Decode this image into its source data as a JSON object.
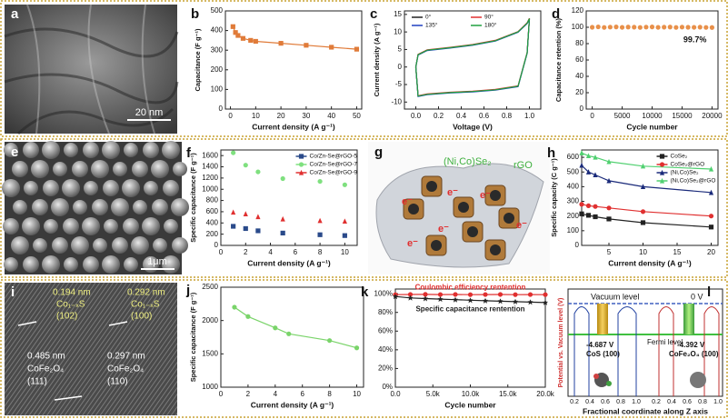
{
  "chart_data": [
    {
      "type": "line",
      "panel_label": "b",
      "xlabel": "Current density (A g⁻¹)",
      "ylabel": "Capacitance (F g⁻¹)",
      "x": [
        1,
        2,
        3,
        5,
        8,
        10,
        20,
        30,
        40,
        50
      ],
      "values": [
        420,
        390,
        375,
        360,
        350,
        345,
        335,
        325,
        315,
        305
      ],
      "color": "#e07b39",
      "marker": "square",
      "xlim": [
        -2,
        52
      ],
      "xticks": [
        0,
        10,
        20,
        30,
        40,
        50
      ],
      "ylim": [
        0,
        500
      ],
      "yticks": [
        0,
        100,
        200,
        300,
        400,
        500
      ]
    },
    {
      "type": "line",
      "panel_label": "c",
      "xlabel": "Voltage (V)",
      "ylabel": "Current density (A g⁻¹)",
      "legend": "top",
      "x": [
        0,
        0.02,
        0.1,
        0.3,
        0.5,
        0.7,
        0.9,
        0.98,
        1.0,
        0.98,
        0.9,
        0.7,
        0.5,
        0.3,
        0.1,
        0.02,
        0
      ],
      "series": [
        {
          "name": "0°",
          "color": "#222222",
          "values": [
            0,
            3.5,
            4.8,
            5.5,
            6.3,
            7.5,
            10,
            12.5,
            13.8,
            4,
            -5.5,
            -6.5,
            -7,
            -7.3,
            -7.8,
            -8.3,
            0
          ]
        },
        {
          "name": "90°",
          "color": "#e03030",
          "values": [
            0,
            3.6,
            4.9,
            5.6,
            6.4,
            7.6,
            10.1,
            12.6,
            13.9,
            4.1,
            -5.4,
            -6.4,
            -6.9,
            -7.2,
            -7.7,
            -8.2,
            0
          ]
        },
        {
          "name": "135°",
          "color": "#2040c0",
          "values": [
            0,
            3.4,
            4.7,
            5.4,
            6.2,
            7.4,
            9.9,
            12.4,
            13.7,
            3.9,
            -5.6,
            -6.6,
            -7.1,
            -7.4,
            -7.9,
            -8.4,
            0
          ]
        },
        {
          "name": "180°",
          "color": "#20a040",
          "values": [
            0,
            3.5,
            4.8,
            5.5,
            6.3,
            7.5,
            10,
            12.5,
            13.8,
            4,
            -5.5,
            -6.5,
            -7,
            -7.3,
            -7.8,
            -8.3,
            0
          ]
        }
      ],
      "xlim": [
        -0.1,
        1.1
      ],
      "xticks": [
        {
          "value": 0,
          "label": "0.0"
        },
        0.2,
        0.4,
        0.6,
        0.8,
        {
          "value": 1,
          "label": "1.0"
        }
      ],
      "ylim": [
        -12,
        16
      ],
      "yticks": [
        -10,
        -5,
        0,
        5,
        10,
        15
      ]
    },
    {
      "type": "scatter",
      "panel_label": "d",
      "xlabel": "Cycle number",
      "ylabel": "Capacitance retention (%)",
      "annotation": "99.7%",
      "x": [
        0,
        1000,
        2000,
        3000,
        4000,
        5000,
        6000,
        7000,
        8000,
        9000,
        10000,
        11000,
        12000,
        13000,
        14000,
        15000,
        16000,
        17000,
        18000,
        19000,
        20000
      ],
      "values": [
        100,
        100.5,
        99.8,
        100.2,
        100.4,
        99.9,
        100.3,
        100.1,
        99.8,
        100.2,
        100.4,
        99.9,
        100.1,
        100.3,
        99.8,
        100.2,
        100,
        99.9,
        100.1,
        99.8,
        99.7
      ],
      "color": "#e8904a",
      "marker": "circle",
      "xlim": [
        -1000,
        21000
      ],
      "xticks": [
        0,
        5000,
        10000,
        15000,
        20000
      ],
      "ylim": [
        0,
        120
      ],
      "yticks": [
        0,
        20,
        40,
        60,
        80,
        100,
        120
      ]
    },
    {
      "type": "scatter",
      "panel_label": "f",
      "xlabel": "Current density (A g⁻¹)",
      "ylabel": "Specific capacitance (F g⁻¹)",
      "legend": "upper right",
      "x": [
        1,
        2,
        3,
        5,
        8,
        10
      ],
      "series": [
        {
          "name": "Co/Zn-Se@rGO-5",
          "color": "#2a4a8a",
          "marker": "square",
          "values": [
            340,
            300,
            260,
            220,
            190,
            175
          ]
        },
        {
          "name": "Co/Zn-Se@rGO-7",
          "color": "#7fe07f",
          "marker": "circle",
          "values": [
            1650,
            1430,
            1310,
            1190,
            1140,
            1080
          ]
        },
        {
          "name": "Co/Zn-Se@rGO-9",
          "color": "#e03030",
          "marker": "triangle",
          "values": [
            590,
            560,
            510,
            470,
            440,
            430
          ]
        }
      ],
      "xlim": [
        0,
        11
      ],
      "xticks": [
        0,
        2,
        4,
        6,
        8,
        10
      ],
      "ylim": [
        0,
        1700
      ],
      "yticks": [
        0,
        200,
        400,
        600,
        800,
        1000,
        1200,
        1400,
        1600
      ]
    },
    {
      "type": "line",
      "panel_label": "h",
      "xlabel": "Current density (A g⁻¹)",
      "ylabel": "Specific capacity (C g⁻¹)",
      "legend": "upper right",
      "x": [
        1,
        2,
        3,
        5,
        10,
        20
      ],
      "series": [
        {
          "name": "CoSe₂",
          "color": "#222222",
          "marker": "square",
          "values": [
            215,
            205,
            195,
            180,
            155,
            125
          ]
        },
        {
          "name": "CoSe₂@rGO",
          "color": "#e03030",
          "marker": "circle",
          "values": [
            280,
            270,
            265,
            255,
            230,
            200
          ]
        },
        {
          "name": "(Ni,Co)Se₂",
          "color": "#1a2a7a",
          "marker": "triangle",
          "values": [
            545,
            500,
            480,
            440,
            400,
            360
          ]
        },
        {
          "name": "(Ni,Co)Se₂@rGO",
          "color": "#50d070",
          "marker": "triangle",
          "values": [
            630,
            610,
            600,
            570,
            540,
            520
          ]
        }
      ],
      "xlim": [
        1,
        21
      ],
      "xticks": [
        5,
        10,
        15,
        20
      ],
      "ylim": [
        0,
        650
      ],
      "yticks": [
        0,
        100,
        200,
        300,
        400,
        500,
        600
      ]
    },
    {
      "type": "line",
      "panel_label": "j",
      "xlabel": "Current density (A g⁻¹)",
      "ylabel": "Specific capacitance (F g⁻¹)",
      "x": [
        1,
        2,
        4,
        5,
        8,
        10
      ],
      "values": [
        2200,
        2060,
        1890,
        1800,
        1700,
        1590
      ],
      "color": "#7ad46a",
      "marker": "circle",
      "xlim": [
        0,
        10.5
      ],
      "xticks": [
        0,
        2,
        4,
        6,
        8,
        10
      ],
      "ylim": [
        1000,
        2500
      ],
      "yticks": [
        1000,
        1500,
        2000,
        2500
      ]
    },
    {
      "type": "line",
      "panel_label": "k",
      "xlabel": "Cycle number",
      "legend": "inline",
      "x": [
        0,
        2000,
        4000,
        6000,
        8000,
        10000,
        12000,
        14000,
        16000,
        18000,
        20000
      ],
      "series": [
        {
          "name": "Coulombic efficiency rentention",
          "color": "#e03030",
          "marker": "circle",
          "values": [
            99,
            99.2,
            99.3,
            99.1,
            99.2,
            99,
            99.1,
            99.2,
            99,
            99.1,
            99
          ]
        },
        {
          "name": "Specific capacitance rentention",
          "color": "#222222",
          "marker": "star",
          "values": [
            97,
            95.5,
            94.8,
            94.2,
            93.6,
            93,
            92.5,
            92,
            91.5,
            91,
            90.5
          ]
        }
      ],
      "xlim": [
        0,
        20000
      ],
      "xticks": [
        {
          "value": 0,
          "label": "0.0"
        },
        {
          "value": 5000,
          "label": "5.0k"
        },
        {
          "value": 10000,
          "label": "10.0k"
        },
        {
          "value": 15000,
          "label": "15.0k"
        },
        {
          "value": 20000,
          "label": "20.0k"
        }
      ],
      "ylim": [
        0,
        105
      ],
      "yticks": [
        {
          "value": 0,
          "label": "0%"
        },
        {
          "value": 20,
          "label": "20%"
        },
        {
          "value": 40,
          "label": "40%"
        },
        {
          "value": 60,
          "label": "60%"
        },
        {
          "value": 80,
          "label": "80%"
        },
        {
          "value": 100,
          "label": "100%"
        }
      ]
    }
  ],
  "image_a": {
    "panel_label": "a",
    "scale_bar": "20 nm"
  },
  "image_e": {
    "panel_label": "e",
    "scale_bar": "1μm"
  },
  "image_i": {
    "panel_label": "i",
    "labels": [
      "0.194 nm",
      "Co₁₋ₓS",
      "(102)",
      "0.292 nm",
      "Co₁₋ₓS",
      "(100)",
      "0.485 nm",
      "CoFe₂O₄",
      "(111)",
      "0.297 nm",
      "CoFe₂O₄",
      "(110)"
    ]
  },
  "diagram_g": {
    "panel_label": "g",
    "compound": "(Ni,Co)Se₂",
    "support": "rGO",
    "electrons": [
      "e⁻",
      "e⁻",
      "e⁻",
      "e⁻",
      "e⁻",
      "e⁻"
    ]
  },
  "diagram_l": {
    "panel_label": "l",
    "vacuum_level": "Vacuum level",
    "zero": "0 V",
    "fermi_level": "Fermi level",
    "left_potential": "-4.687 V",
    "left_surface": "CoS  (100)",
    "right_potential": "-4.392 V",
    "right_surface": "CoFe₂O₄  (100)",
    "ylabel": "Potential vs. Vacuum level (V)",
    "xlabel": "Fractional coordinate along Z axis",
    "ticks": [
      "0.2",
      "0.4",
      "0.6",
      "0.8",
      "1.0",
      "0.2",
      "0.4",
      "0.6",
      "0.8",
      "1.0"
    ]
  }
}
